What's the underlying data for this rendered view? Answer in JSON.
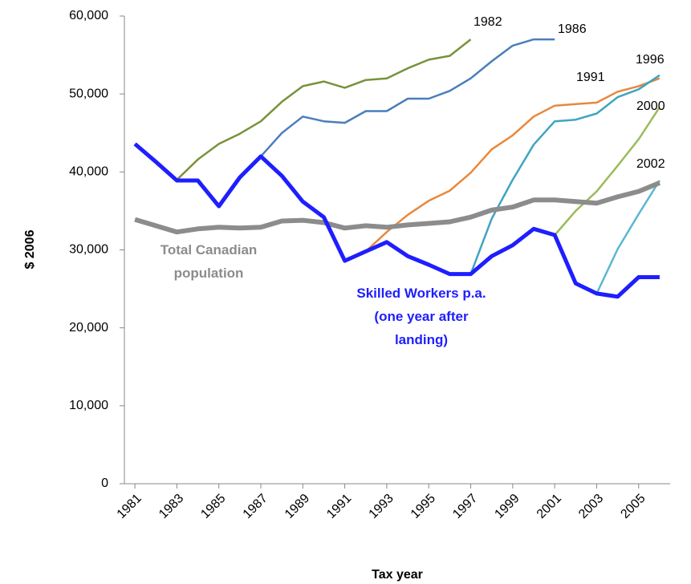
{
  "chart_data": {
    "type": "line",
    "x_label": "Tax year",
    "y_label": "$ 2006",
    "x": [
      1981,
      1982,
      1983,
      1984,
      1985,
      1986,
      1987,
      1988,
      1989,
      1990,
      1991,
      1992,
      1993,
      1994,
      1995,
      1996,
      1997,
      1998,
      1999,
      2000,
      2001,
      2002,
      2003,
      2004,
      2005,
      2006
    ],
    "xlim": [
      1980.5,
      2006.5
    ],
    "xticks": [
      1981,
      1983,
      1985,
      1987,
      1989,
      1991,
      1993,
      1995,
      1997,
      1999,
      2001,
      2003,
      2005
    ],
    "ylim": [
      0,
      60000
    ],
    "yticks": [
      0,
      {
        "value": 10000,
        "label": "10,000"
      },
      {
        "value": 20000,
        "label": "20,000"
      },
      {
        "value": 30000,
        "label": "30,000"
      },
      {
        "value": 40000,
        "label": "40,000"
      },
      {
        "value": 50000,
        "label": "50,000"
      },
      {
        "value": 60000,
        "label": "60,000"
      }
    ],
    "grid": false,
    "series": [
      {
        "name": "1982",
        "color": "#77933c",
        "width": 2.5,
        "values": [
          null,
          null,
          39000,
          41600,
          43600,
          44900,
          46500,
          49000,
          51000,
          51600,
          50800,
          51800,
          52000,
          53300,
          54400,
          54900,
          57000,
          null,
          null,
          null,
          null,
          null,
          null,
          null,
          null,
          null
        ]
      },
      {
        "name": "1986",
        "color": "#4a7ebb",
        "width": 2.5,
        "values": [
          null,
          null,
          null,
          null,
          null,
          null,
          42000,
          45000,
          47100,
          46500,
          46300,
          47800,
          47800,
          49400,
          49400,
          50400,
          52000,
          54200,
          56200,
          57000,
          57000,
          null,
          null,
          null,
          null,
          null
        ]
      },
      {
        "name": "1991",
        "color": "#e8883c",
        "width": 2.5,
        "values": [
          null,
          null,
          null,
          null,
          null,
          null,
          null,
          null,
          null,
          null,
          null,
          29800,
          32300,
          34500,
          36300,
          37600,
          39900,
          42900,
          44700,
          47100,
          48500,
          48700,
          48900,
          50300,
          51000,
          52000
        ]
      },
      {
        "name": "1996",
        "color": "#3fa5c0",
        "width": 2.5,
        "values": [
          null,
          null,
          null,
          null,
          null,
          null,
          null,
          null,
          null,
          null,
          null,
          null,
          null,
          null,
          null,
          null,
          26900,
          34000,
          39000,
          43500,
          46500,
          46700,
          47500,
          49600,
          50600,
          52400
        ]
      },
      {
        "name": "2000",
        "color": "#9bbb59",
        "width": 2.5,
        "values": [
          null,
          null,
          null,
          null,
          null,
          null,
          null,
          null,
          null,
          null,
          null,
          null,
          null,
          null,
          null,
          null,
          null,
          null,
          null,
          null,
          31900,
          35000,
          37500,
          40800,
          44200,
          48300
        ]
      },
      {
        "name": "2002",
        "color": "#5ab8d0",
        "width": 2.5,
        "values": [
          null,
          null,
          null,
          null,
          null,
          null,
          null,
          null,
          null,
          null,
          null,
          null,
          null,
          null,
          null,
          null,
          null,
          null,
          null,
          null,
          null,
          null,
          24400,
          30100,
          34600,
          38900
        ]
      },
      {
        "name": "Total Canadian population",
        "color": "#8c8c8c",
        "width": 6,
        "values": [
          33900,
          33100,
          32300,
          32700,
          32900,
          32800,
          32900,
          33700,
          33800,
          33500,
          32800,
          33100,
          32900,
          33200,
          33400,
          33600,
          34200,
          35100,
          35500,
          36400,
          36400,
          36200,
          36000,
          36800,
          37500,
          38600
        ]
      },
      {
        "name": "Skilled Workers p.a. (one year after landing)",
        "color": "#1e1eff",
        "width": 5,
        "values": [
          43600,
          41300,
          38900,
          38900,
          35600,
          39300,
          42000,
          39500,
          36200,
          34200,
          28600,
          29800,
          31000,
          29200,
          28100,
          26900,
          26900,
          29200,
          30600,
          32700,
          31900,
          25700,
          24400,
          24000,
          26500,
          26500
        ]
      }
    ]
  }
}
